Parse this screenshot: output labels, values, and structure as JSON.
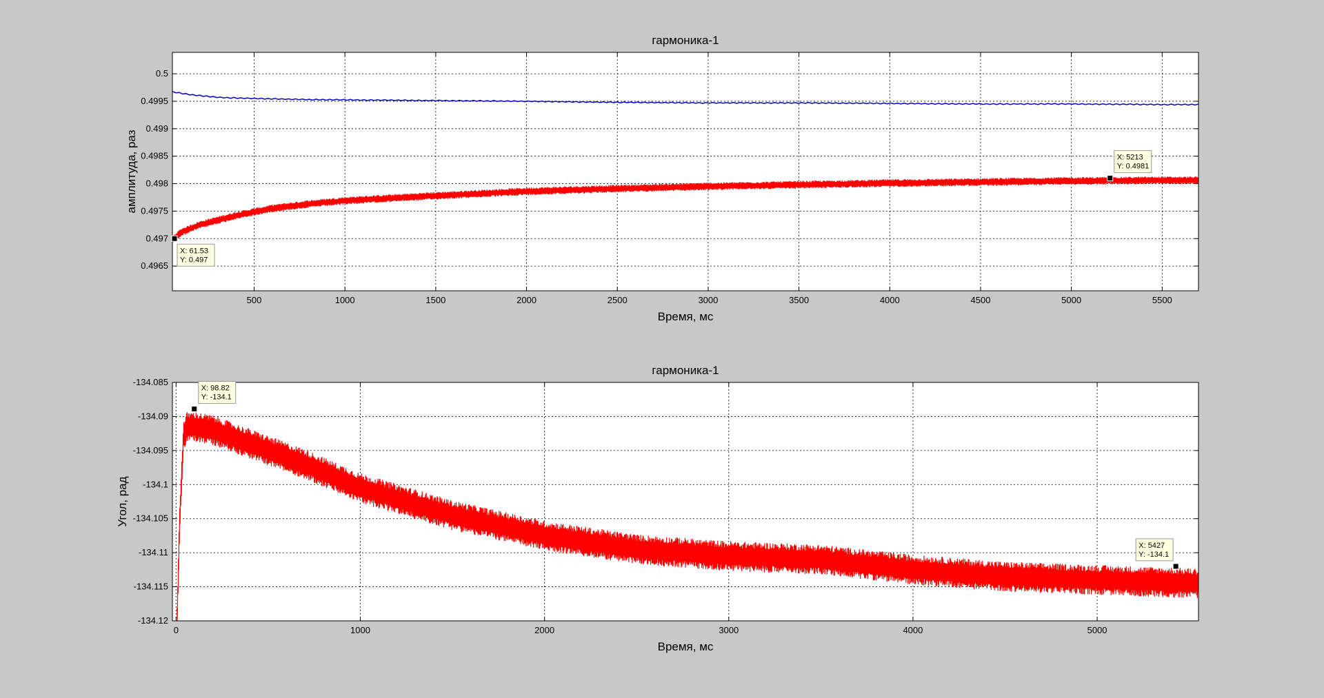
{
  "chart_data": [
    {
      "type": "line",
      "title": "гармоника-1",
      "xlabel": "Время, мс",
      "ylabel": "амплитуда, раз",
      "xlim": [
        50,
        5700
      ],
      "ylim": [
        0.49605,
        0.50039
      ],
      "xticks": [
        500,
        1000,
        1500,
        2000,
        2500,
        3000,
        3500,
        4000,
        4500,
        5000,
        5500
      ],
      "xtick_labels": [
        "500",
        "1000",
        "1500",
        "2000",
        "2500",
        "3000",
        "3500",
        "4000",
        "4500",
        "5000",
        "5500"
      ],
      "yticks": [
        0.4965,
        0.497,
        0.4975,
        0.498,
        0.4985,
        0.499,
        0.4995,
        0.5
      ],
      "ytick_labels": [
        "0.4965",
        "0.497",
        "0.4975",
        "0.498",
        "0.4985",
        "0.499",
        "0.4995",
        "0.5"
      ],
      "grid": true,
      "series": [
        {
          "color": "#0000cc",
          "x": [
            50,
            150,
            300,
            500,
            800,
            1200,
            1600,
            2000,
            2500,
            3000,
            3500,
            4000,
            4500,
            5000,
            5500,
            5700
          ],
          "y": [
            0.49967,
            0.49962,
            0.49957,
            0.49955,
            0.49953,
            0.49952,
            0.49951,
            0.4995,
            0.49948,
            0.49947,
            0.49947,
            0.49946,
            0.49945,
            0.49945,
            0.49944,
            0.49944
          ],
          "noise": 1e-05
        },
        {
          "color": "#ff0000",
          "x": [
            50,
            100,
            200,
            400,
            600,
            800,
            1000,
            1500,
            2000,
            2500,
            3000,
            3500,
            4000,
            4500,
            5000,
            5500,
            5700
          ],
          "y": [
            0.49698,
            0.49712,
            0.49725,
            0.49742,
            0.49755,
            0.49763,
            0.49769,
            0.49778,
            0.49786,
            0.49791,
            0.49795,
            0.49798,
            0.49801,
            0.49803,
            0.49805,
            0.49806,
            0.49806
          ],
          "noise": 7e-05
        }
      ],
      "datatips": [
        {
          "x": 61.53,
          "y": 0.497,
          "x_text": "X: 61.53",
          "y_text": "Y: 0.497",
          "side": "bottom-right"
        },
        {
          "x": 5213,
          "y": 0.4981,
          "x_text": "X: 5213",
          "y_text": "Y: 0.4981",
          "side": "top-right"
        }
      ]
    },
    {
      "type": "line",
      "title": "гармоника-1",
      "xlabel": "Время, мс",
      "ylabel": "Угол, рад",
      "xlim": [
        -20,
        5550
      ],
      "ylim": [
        -134.12,
        -134.085
      ],
      "xticks": [
        0,
        1000,
        2000,
        3000,
        4000,
        5000
      ],
      "xtick_labels": [
        "0",
        "1000",
        "2000",
        "3000",
        "4000",
        "5000"
      ],
      "yticks": [
        -134.12,
        -134.115,
        -134.11,
        -134.105,
        -134.1,
        -134.095,
        -134.09,
        -134.085
      ],
      "ytick_labels": [
        "-134.12",
        "-134.115",
        "-134.11",
        "-134.105",
        "-134.1",
        "-134.095",
        "-134.09",
        "-134.085"
      ],
      "grid": true,
      "series": [
        {
          "color": "#ff0000",
          "x": [
            5,
            20,
            40,
            60,
            100,
            200,
            400,
            700,
            1000,
            1500,
            2000,
            2500,
            3000,
            3500,
            4000,
            4500,
            5000,
            5550
          ],
          "y": [
            -134.12,
            -134.105,
            -134.093,
            -134.0915,
            -134.0915,
            -134.092,
            -134.094,
            -134.097,
            -134.1005,
            -134.1045,
            -134.1075,
            -134.1095,
            -134.1105,
            -134.111,
            -134.1125,
            -134.1135,
            -134.114,
            -134.1145
          ],
          "noise": 0.0022
        }
      ],
      "datatips": [
        {
          "x": 98.82,
          "y": -134.0889,
          "x_text": "X: 98.82",
          "y_text": "Y: -134.1",
          "side": "top-right"
        },
        {
          "x": 5427,
          "y": -134.112,
          "x_text": "X: 5427",
          "y_text": "Y: -134.1",
          "side": "top-left"
        }
      ]
    }
  ]
}
